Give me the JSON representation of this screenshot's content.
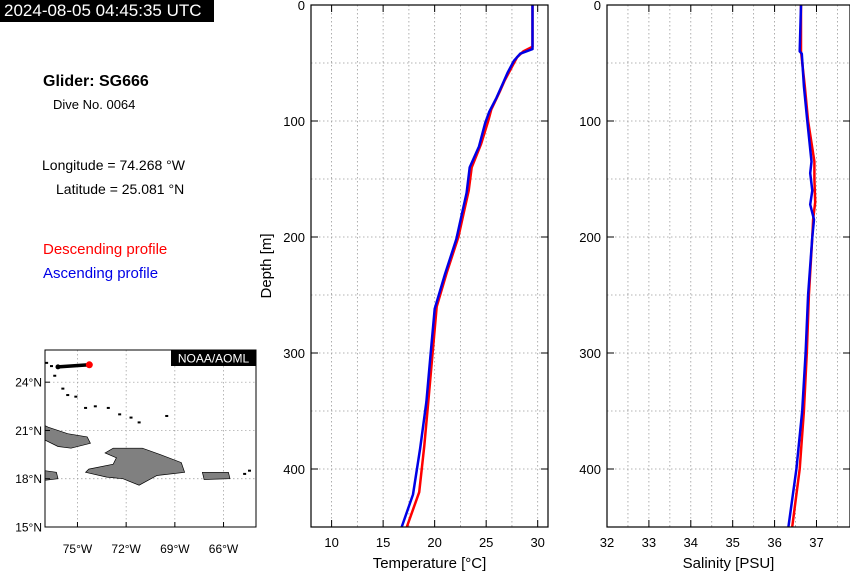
{
  "header": {
    "timestamp": "2024-08-05 04:45:35 UTC",
    "glider": "Glider: SG666",
    "dive": "Dive No. 0064",
    "longitude": "Longitude = 74.268 °W",
    "latitude": "Latitude = 25.081 °N",
    "descending_label": "Descending profile",
    "ascending_label": "Ascending profile"
  },
  "colors": {
    "descending": "#ff0000",
    "ascending": "#0000e6",
    "land": "#808080"
  },
  "map": {
    "credit": "NOAA/AOML",
    "lat_ticks": [
      "24°N",
      "21°N",
      "18°N",
      "15°N"
    ],
    "lat_values": [
      24,
      21,
      18,
      15
    ],
    "lon_ticks": [
      "75°W",
      "72°W",
      "69°W",
      "66°W"
    ],
    "lon_values": [
      -75,
      -72,
      -69,
      -66
    ],
    "lon_range": [
      -77,
      -64
    ],
    "lat_range": [
      15,
      26
    ],
    "track": [
      [
        -76.2,
        24.95
      ],
      [
        -74.27,
        25.08
      ]
    ],
    "current_position": [
      -74.268,
      25.081
    ]
  },
  "chart_data": [
    {
      "type": "line",
      "xlabel": "Temperature [°C]",
      "ylabel": "Depth [m]",
      "xlim": [
        8,
        31
      ],
      "ylim": [
        450,
        0
      ],
      "x_ticks": [
        10,
        15,
        20,
        25,
        30
      ],
      "y_ticks": [
        0,
        100,
        200,
        300,
        400
      ],
      "grid": true,
      "series": [
        {
          "name": "Descending profile",
          "depth": [
            0,
            36,
            40,
            45,
            55,
            65,
            75,
            90,
            100,
            120,
            140,
            160,
            180,
            200,
            230,
            260,
            300,
            340,
            380,
            420,
            450
          ],
          "values": [
            29.5,
            29.5,
            28.6,
            28.0,
            27.4,
            26.8,
            26.3,
            25.5,
            25.2,
            24.5,
            23.6,
            23.3,
            22.8,
            22.3,
            21.2,
            20.2,
            19.8,
            19.4,
            19.0,
            18.5,
            17.3
          ]
        },
        {
          "name": "Ascending profile",
          "depth": [
            0,
            38,
            42,
            48,
            58,
            68,
            80,
            92,
            102,
            122,
            140,
            162,
            182,
            202,
            232,
            262,
            302,
            342,
            382,
            422,
            450
          ],
          "values": [
            29.5,
            29.5,
            28.3,
            27.7,
            27.1,
            26.6,
            26.0,
            25.3,
            24.9,
            24.3,
            23.4,
            23.1,
            22.6,
            22.1,
            21.0,
            20.0,
            19.6,
            19.2,
            18.6,
            17.9,
            16.8
          ]
        }
      ]
    },
    {
      "type": "line",
      "xlabel": "Salinity [PSU]",
      "ylabel": "",
      "xlim": [
        32,
        37.8
      ],
      "ylim": [
        450,
        0
      ],
      "x_ticks": [
        32,
        33,
        34,
        35,
        36,
        37
      ],
      "y_ticks": [
        0,
        100,
        200,
        300,
        400
      ],
      "grid": true,
      "series": [
        {
          "name": "Descending profile",
          "depth": [
            0,
            40,
            70,
            100,
            135,
            150,
            170,
            185,
            200,
            250,
            300,
            350,
            400,
            450
          ],
          "values": [
            36.63,
            36.63,
            36.72,
            36.8,
            36.95,
            36.95,
            36.97,
            36.92,
            36.9,
            36.82,
            36.77,
            36.7,
            36.6,
            36.42
          ]
        },
        {
          "name": "Ascending profile",
          "depth": [
            0,
            40,
            42,
            70,
            100,
            135,
            145,
            160,
            172,
            185,
            200,
            250,
            300,
            350,
            400,
            450
          ],
          "values": [
            36.63,
            36.6,
            36.65,
            36.7,
            36.78,
            36.88,
            36.85,
            36.9,
            36.85,
            36.94,
            36.9,
            36.8,
            36.74,
            36.66,
            36.52,
            36.33
          ]
        }
      ]
    }
  ]
}
